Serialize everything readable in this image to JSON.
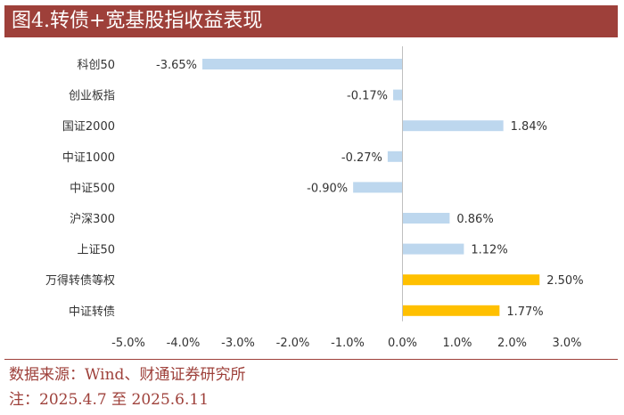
{
  "header": {
    "title": "图4.转债+宽基股指收益表现"
  },
  "chart_data": {
    "type": "bar",
    "orientation": "horizontal",
    "categories": [
      "科创50",
      "创业板指",
      "国证2000",
      "中证1000",
      "中证500",
      "沪深300",
      "上证50",
      "万得转债等权",
      "中证转债"
    ],
    "values": [
      -3.65,
      -0.17,
      1.84,
      -0.27,
      -0.9,
      0.86,
      1.12,
      2.5,
      1.77
    ],
    "data_labels": [
      "-3.65%",
      "-0.17%",
      "1.84%",
      "-0.27%",
      "-0.90%",
      "0.86%",
      "1.12%",
      "2.50%",
      "1.77%"
    ],
    "highlight": [
      false,
      false,
      false,
      false,
      false,
      false,
      false,
      true,
      true
    ],
    "colors": {
      "default": "#bdd7ee",
      "highlight": "#ffc000"
    },
    "xlim": [
      -5,
      3
    ],
    "xticks": [
      -5,
      -4,
      -3,
      -2,
      -1,
      0,
      1,
      2,
      3
    ],
    "xtick_labels": [
      "-5.0%",
      "-4.0%",
      "-3.0%",
      "-2.0%",
      "-1.0%",
      "0.0%",
      "1.0%",
      "2.0%",
      "3.0%"
    ],
    "title": "",
    "xlabel": "",
    "ylabel": "",
    "grid": false,
    "legend": "none"
  },
  "footer": {
    "source": "数据来源：Wind、财通证券研究所",
    "note": "注：2025.4.7 至 2025.6.11"
  }
}
